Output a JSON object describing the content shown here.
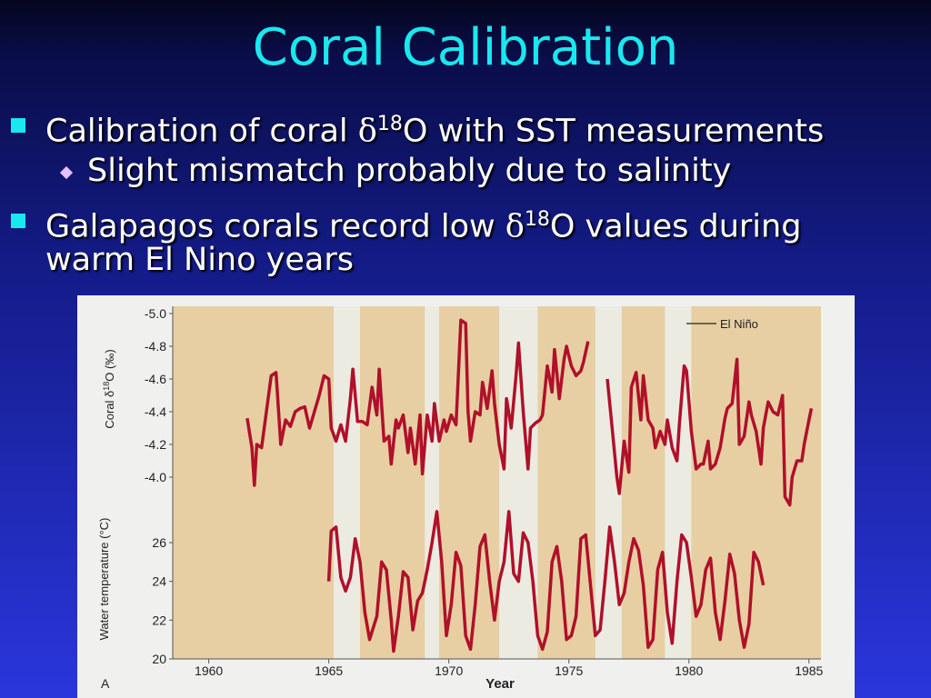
{
  "slide": {
    "title": "Coral Calibration",
    "bullets": [
      {
        "pre": "Calibration of coral ",
        "sym": "δ",
        "sup": "18",
        "post": "O with SST measurements"
      },
      {
        "text": "Slight mismatch probably due to salinity"
      },
      {
        "pre": "Galapagos corals record low ",
        "sym": "δ",
        "sup": "18",
        "post": "O values during"
      },
      {
        "text": "warm El Nino years"
      }
    ]
  },
  "chart_data": {
    "type": "line",
    "xlabel": "Year",
    "panel_label": "A",
    "legend": "El Niño",
    "x_ticks": [
      "1960",
      "1965",
      "1970",
      "1975",
      "1980",
      "1985"
    ],
    "xlim": [
      1958.5,
      1985.5
    ],
    "el_nino_bands": [
      [
        1965.2,
        1966.3
      ],
      [
        1969.0,
        1969.6
      ],
      [
        1972.1,
        1973.7
      ],
      [
        1976.1,
        1977.2
      ],
      [
        1979.0,
        1980.1
      ]
    ],
    "colors": {
      "low": "#0e1358",
      "high": "#b0102a",
      "band": "#ecebe2",
      "bg": "#e7cfa3"
    },
    "series": [
      {
        "key": "coral",
        "ylabel": "Coral δ18O (‰)",
        "ylim": [
          -3.9,
          -5.0
        ],
        "y_ticks": [
          "-5.0",
          "-4.8",
          "-4.6",
          "-4.4",
          "-4.2",
          "-4.0"
        ],
        "points": [
          [
            1961.6,
            -4.36
          ],
          [
            1961.8,
            -4.18
          ],
          [
            1961.9,
            -3.95
          ],
          [
            1962.0,
            -4.2
          ],
          [
            1962.2,
            -4.18
          ],
          [
            1962.4,
            -4.4
          ],
          [
            1962.6,
            -4.62
          ],
          [
            1962.8,
            -4.64
          ],
          [
            1963.0,
            -4.2
          ],
          [
            1963.2,
            -4.35
          ],
          [
            1963.4,
            -4.31
          ],
          [
            1963.6,
            -4.4
          ],
          [
            1963.8,
            -4.42
          ],
          [
            1964.0,
            -4.43
          ],
          [
            1964.2,
            -4.3
          ],
          [
            1964.4,
            -4.4
          ],
          [
            1964.6,
            -4.5
          ],
          [
            1964.8,
            -4.62
          ],
          [
            1965.0,
            -4.6
          ],
          [
            1965.1,
            -4.3
          ],
          [
            1965.3,
            -4.22
          ],
          [
            1965.5,
            -4.32
          ],
          [
            1965.7,
            -4.22
          ],
          [
            1965.9,
            -4.48
          ],
          [
            1966.0,
            -4.66
          ],
          [
            1966.2,
            -4.34
          ],
          [
            1966.4,
            -4.34
          ],
          [
            1966.6,
            -4.32
          ],
          [
            1966.8,
            -4.55
          ],
          [
            1967.0,
            -4.38
          ],
          [
            1967.1,
            -4.66
          ],
          [
            1967.3,
            -4.22
          ],
          [
            1967.5,
            -4.25
          ],
          [
            1967.6,
            -4.08
          ],
          [
            1967.8,
            -4.35
          ],
          [
            1967.9,
            -4.3
          ],
          [
            1968.1,
            -4.38
          ],
          [
            1968.3,
            -4.15
          ],
          [
            1968.4,
            -4.3
          ],
          [
            1968.6,
            -4.08
          ],
          [
            1968.8,
            -4.38
          ],
          [
            1968.9,
            -4.02
          ],
          [
            1969.1,
            -4.38
          ],
          [
            1969.3,
            -4.22
          ],
          [
            1969.4,
            -4.45
          ],
          [
            1969.6,
            -4.22
          ],
          [
            1969.8,
            -4.35
          ],
          [
            1969.9,
            -4.28
          ],
          [
            1970.1,
            -4.38
          ],
          [
            1970.3,
            -4.32
          ],
          [
            1970.5,
            -4.96
          ],
          [
            1970.7,
            -4.94
          ],
          [
            1970.8,
            -4.4
          ],
          [
            1970.9,
            -4.22
          ],
          [
            1971.1,
            -4.4
          ],
          [
            1971.3,
            -4.38
          ],
          [
            1971.4,
            -4.58
          ],
          [
            1971.6,
            -4.42
          ],
          [
            1971.8,
            -4.65
          ],
          [
            1971.9,
            -4.45
          ],
          [
            1972.1,
            -4.2
          ],
          [
            1972.3,
            -4.05
          ],
          [
            1972.4,
            -4.48
          ],
          [
            1972.6,
            -4.3
          ],
          [
            1972.8,
            -4.62
          ],
          [
            1972.9,
            -4.82
          ],
          [
            1973.1,
            -4.4
          ],
          [
            1973.3,
            -4.05
          ],
          [
            1973.4,
            -4.3
          ],
          [
            1973.6,
            -4.33
          ],
          [
            1973.8,
            -4.35
          ],
          [
            1973.9,
            -4.38
          ],
          [
            1974.1,
            -4.68
          ],
          [
            1974.3,
            -4.52
          ],
          [
            1974.4,
            -4.78
          ],
          [
            1974.6,
            -4.48
          ],
          [
            1974.8,
            -4.72
          ],
          [
            1974.9,
            -4.8
          ],
          [
            1975.1,
            -4.68
          ],
          [
            1975.3,
            -4.62
          ],
          [
            1975.5,
            -4.65
          ],
          [
            1975.6,
            -4.7
          ],
          [
            1975.8,
            -4.83
          ]
        ],
        "points_b": [
          [
            1976.6,
            -4.6
          ],
          [
            1976.8,
            -4.3
          ],
          [
            1977.0,
            -4.0
          ],
          [
            1977.1,
            -3.9
          ],
          [
            1977.3,
            -4.22
          ],
          [
            1977.5,
            -4.03
          ],
          [
            1977.6,
            -4.55
          ],
          [
            1977.8,
            -4.64
          ],
          [
            1978.0,
            -4.35
          ],
          [
            1978.1,
            -4.62
          ],
          [
            1978.3,
            -4.35
          ],
          [
            1978.5,
            -4.3
          ],
          [
            1978.6,
            -4.18
          ],
          [
            1978.8,
            -4.28
          ],
          [
            1979.0,
            -4.2
          ],
          [
            1979.1,
            -4.35
          ],
          [
            1979.3,
            -4.18
          ],
          [
            1979.5,
            -4.1
          ],
          [
            1979.6,
            -4.32
          ],
          [
            1979.8,
            -4.68
          ],
          [
            1979.9,
            -4.65
          ],
          [
            1980.1,
            -4.28
          ],
          [
            1980.3,
            -4.05
          ],
          [
            1980.5,
            -4.08
          ],
          [
            1980.6,
            -4.08
          ],
          [
            1980.8,
            -4.22
          ],
          [
            1980.9,
            -4.05
          ],
          [
            1981.1,
            -4.08
          ],
          [
            1981.3,
            -4.18
          ],
          [
            1981.5,
            -4.36
          ],
          [
            1981.6,
            -4.42
          ],
          [
            1981.8,
            -4.45
          ],
          [
            1982.0,
            -4.72
          ],
          [
            1982.1,
            -4.2
          ],
          [
            1982.3,
            -4.25
          ],
          [
            1982.5,
            -4.46
          ],
          [
            1982.6,
            -4.38
          ],
          [
            1982.8,
            -4.28
          ],
          [
            1983.0,
            -4.08
          ],
          [
            1983.1,
            -4.3
          ],
          [
            1983.3,
            -4.46
          ],
          [
            1983.5,
            -4.4
          ],
          [
            1983.7,
            -4.38
          ],
          [
            1983.9,
            -4.5
          ],
          [
            1984.0,
            -3.88
          ],
          [
            1984.2,
            -3.83
          ],
          [
            1984.3,
            -4.0
          ],
          [
            1984.5,
            -4.1
          ],
          [
            1984.7,
            -4.1
          ],
          [
            1984.8,
            -4.2
          ],
          [
            1985.0,
            -4.35
          ],
          [
            1985.1,
            -4.42
          ]
        ]
      },
      {
        "key": "sst",
        "ylabel": "Water temperature (°C)",
        "ylim": [
          20,
          27
        ],
        "y_ticks": [
          "26",
          "24",
          "22",
          "20"
        ],
        "points": [
          [
            1965.0,
            24.0
          ],
          [
            1965.1,
            26.6
          ],
          [
            1965.3,
            26.8
          ],
          [
            1965.5,
            24.2
          ],
          [
            1965.7,
            23.5
          ],
          [
            1965.9,
            24.2
          ],
          [
            1966.1,
            26.2
          ],
          [
            1966.3,
            25.0
          ],
          [
            1966.5,
            22.4
          ],
          [
            1966.7,
            21.0
          ],
          [
            1966.9,
            21.8
          ],
          [
            1967.0,
            22.2
          ],
          [
            1967.2,
            25.0
          ],
          [
            1967.4,
            24.6
          ],
          [
            1967.6,
            22.0
          ],
          [
            1967.7,
            20.4
          ],
          [
            1967.9,
            22.2
          ],
          [
            1968.1,
            24.5
          ],
          [
            1968.3,
            24.2
          ],
          [
            1968.5,
            21.5
          ],
          [
            1968.7,
            23.0
          ],
          [
            1968.9,
            23.4
          ],
          [
            1969.1,
            24.6
          ],
          [
            1969.3,
            26.0
          ],
          [
            1969.5,
            27.6
          ],
          [
            1969.7,
            25.0
          ],
          [
            1969.9,
            21.2
          ],
          [
            1970.1,
            22.8
          ],
          [
            1970.3,
            25.5
          ],
          [
            1970.5,
            24.8
          ],
          [
            1970.7,
            21.2
          ],
          [
            1970.9,
            20.5
          ],
          [
            1971.1,
            22.8
          ],
          [
            1971.3,
            25.8
          ],
          [
            1971.5,
            26.4
          ],
          [
            1971.7,
            24.0
          ],
          [
            1971.9,
            22.0
          ],
          [
            1972.1,
            24.0
          ],
          [
            1972.3,
            25.0
          ],
          [
            1972.5,
            27.6
          ],
          [
            1972.7,
            24.4
          ],
          [
            1972.9,
            24.0
          ],
          [
            1973.1,
            26.5
          ],
          [
            1973.3,
            26.0
          ],
          [
            1973.5,
            24.0
          ],
          [
            1973.7,
            21.2
          ],
          [
            1973.9,
            20.5
          ],
          [
            1974.1,
            21.4
          ],
          [
            1974.3,
            25.0
          ],
          [
            1974.5,
            25.8
          ],
          [
            1974.7,
            24.0
          ],
          [
            1974.9,
            21.0
          ],
          [
            1975.1,
            21.2
          ],
          [
            1975.3,
            22.2
          ],
          [
            1975.5,
            26.2
          ],
          [
            1975.7,
            26.4
          ],
          [
            1975.9,
            23.8
          ],
          [
            1976.1,
            21.2
          ],
          [
            1976.3,
            21.5
          ],
          [
            1976.5,
            24.0
          ],
          [
            1976.7,
            26.8
          ],
          [
            1976.9,
            25.0
          ],
          [
            1977.1,
            22.8
          ],
          [
            1977.3,
            23.4
          ],
          [
            1977.5,
            25.0
          ],
          [
            1977.7,
            26.2
          ],
          [
            1977.9,
            25.6
          ],
          [
            1978.1,
            23.8
          ],
          [
            1978.3,
            20.6
          ],
          [
            1978.5,
            21.0
          ],
          [
            1978.7,
            24.6
          ],
          [
            1978.9,
            25.5
          ],
          [
            1979.1,
            22.4
          ],
          [
            1979.3,
            20.8
          ],
          [
            1979.5,
            24.0
          ],
          [
            1979.7,
            26.4
          ],
          [
            1979.9,
            26.0
          ],
          [
            1980.1,
            24.2
          ],
          [
            1980.3,
            22.2
          ],
          [
            1980.5,
            22.8
          ],
          [
            1980.7,
            24.6
          ],
          [
            1980.9,
            25.2
          ],
          [
            1981.1,
            22.4
          ],
          [
            1981.3,
            21.0
          ],
          [
            1981.5,
            23.0
          ],
          [
            1981.7,
            25.4
          ],
          [
            1981.9,
            24.4
          ],
          [
            1982.1,
            22.0
          ],
          [
            1982.3,
            20.6
          ],
          [
            1982.5,
            21.8
          ],
          [
            1982.7,
            25.5
          ],
          [
            1982.9,
            25.0
          ],
          [
            1983.1,
            23.8
          ]
        ]
      }
    ]
  }
}
